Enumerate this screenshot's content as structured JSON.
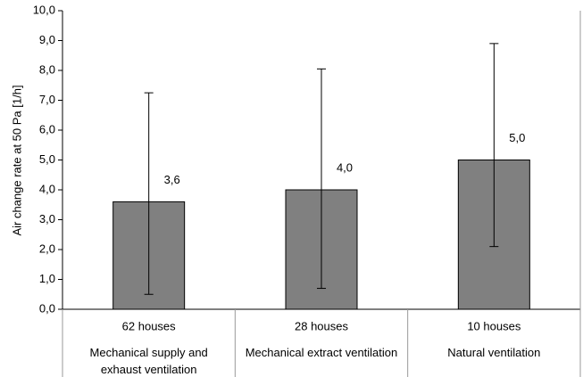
{
  "chart_data": {
    "type": "bar",
    "y_label": "Air change rate at 50 Pa [1/h]",
    "categories": [
      "Mechanical supply and exhaust ventilation",
      "Mechanical extract ventilation",
      "Natural ventilation"
    ],
    "sample_sizes": [
      "62 houses",
      "28 houses",
      "10 houses"
    ],
    "values": [
      3.6,
      4.0,
      5.0
    ],
    "value_labels": [
      "3,6",
      "4,0",
      "5,0"
    ],
    "error_lower": [
      0.5,
      0.7,
      2.1
    ],
    "error_upper": [
      7.25,
      8.05,
      8.9
    ],
    "color": "#808080",
    "ylim": [
      0,
      10
    ],
    "yticks": [
      {
        "value": 0,
        "label": "0,0"
      },
      {
        "value": 1,
        "label": "1,0"
      },
      {
        "value": 2,
        "label": "2,0"
      },
      {
        "value": 3,
        "label": "3,0"
      },
      {
        "value": 4,
        "label": "4,0"
      },
      {
        "value": 5,
        "label": "5,0"
      },
      {
        "value": 6,
        "label": "6,0"
      },
      {
        "value": 7,
        "label": "7,0"
      },
      {
        "value": 8,
        "label": "8,0"
      },
      {
        "value": 9,
        "label": "9,0"
      },
      {
        "value": 10,
        "label": "10,0"
      }
    ],
    "grid": false
  }
}
